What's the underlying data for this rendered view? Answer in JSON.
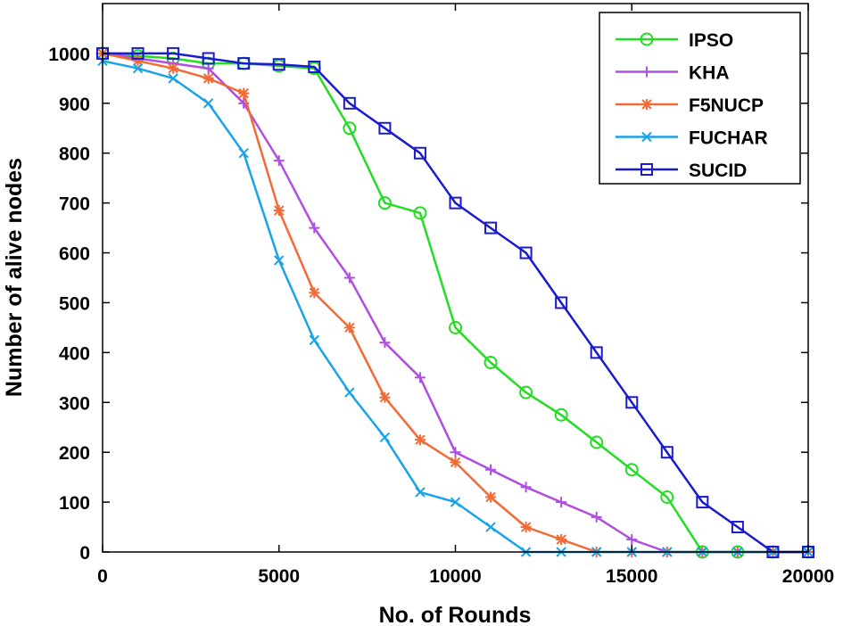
{
  "chart_data": {
    "type": "line",
    "xlabel": "No. of Rounds",
    "ylabel": "Number of alive nodes",
    "xlim": [
      0,
      20000
    ],
    "ylim": [
      0,
      1100
    ],
    "xticks": [
      "0",
      "5000",
      "10000",
      "15000",
      "20000"
    ],
    "yticks": [
      "0",
      "100",
      "200",
      "300",
      "400",
      "500",
      "600",
      "700",
      "800",
      "900",
      "1000"
    ],
    "grid": false,
    "legend_position": "top-right",
    "x": [
      0,
      1000,
      2000,
      3000,
      4000,
      5000,
      6000,
      7000,
      8000,
      9000,
      10000,
      11000,
      12000,
      13000,
      14000,
      15000,
      16000,
      17000,
      18000,
      19000,
      20000
    ],
    "series": [
      {
        "name": "IPSO",
        "color": "#22dd22",
        "marker": "circle",
        "values": [
          1000,
          995,
          990,
          980,
          980,
          975,
          970,
          850,
          700,
          680,
          450,
          380,
          320,
          275,
          220,
          165,
          110,
          0,
          0,
          0,
          0
        ]
      },
      {
        "name": "KHA",
        "color": "#b04ee0",
        "marker": "plus",
        "values": [
          1000,
          990,
          980,
          970,
          900,
          785,
          650,
          550,
          420,
          350,
          200,
          165,
          130,
          100,
          70,
          25,
          0,
          0,
          0,
          0,
          0
        ]
      },
      {
        "name": "F5NUCP",
        "color": "#f26a35",
        "marker": "asterisk",
        "values": [
          1000,
          985,
          970,
          950,
          920,
          685,
          520,
          450,
          310,
          225,
          180,
          110,
          50,
          25,
          0,
          0,
          0,
          0,
          0,
          0,
          0
        ]
      },
      {
        "name": "FUCHAR",
        "color": "#1aa3e8",
        "marker": "x",
        "values": [
          985,
          970,
          950,
          900,
          800,
          585,
          425,
          320,
          230,
          120,
          100,
          50,
          0,
          0,
          0,
          0,
          0,
          0,
          0,
          0,
          0
        ]
      },
      {
        "name": "SUCID",
        "color": "#1a1ad0",
        "marker": "square",
        "values": [
          1000,
          1000,
          1000,
          990,
          980,
          978,
          973,
          900,
          850,
          800,
          700,
          650,
          600,
          500,
          400,
          300,
          200,
          100,
          50,
          0,
          0
        ]
      }
    ]
  }
}
